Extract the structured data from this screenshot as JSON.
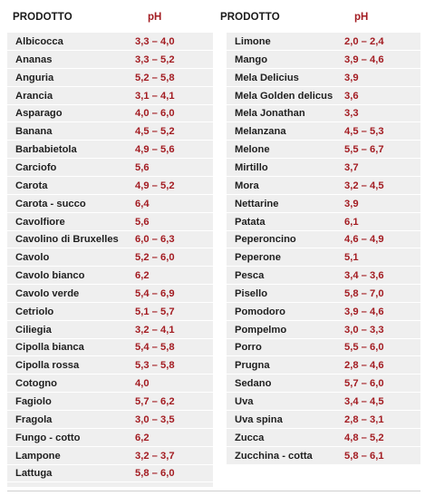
{
  "header": {
    "left_product_label": "PRODOTTO",
    "left_ph_label": "pH",
    "right_product_label": "PRODOTTO",
    "right_ph_label": "pH"
  },
  "left_table": [
    {
      "name": "Albicocca",
      "ph": "3,3 – 4,0"
    },
    {
      "name": "Ananas",
      "ph": "3,3 – 5,2"
    },
    {
      "name": "Anguria",
      "ph": "5,2 – 5,8"
    },
    {
      "name": "Arancia",
      "ph": "3,1 – 4,1"
    },
    {
      "name": "Asparago",
      "ph": "4,0 – 6,0"
    },
    {
      "name": "Banana",
      "ph": "4,5 – 5,2"
    },
    {
      "name": "Barbabietola",
      "ph": "4,9 – 5,6"
    },
    {
      "name": "Carciofo",
      "ph": "5,6"
    },
    {
      "name": "Carota",
      "ph": "4,9 – 5,2"
    },
    {
      "name": "Carota - succo",
      "ph": "6,4"
    },
    {
      "name": "Cavolfiore",
      "ph": "5,6"
    },
    {
      "name": "Cavolino di Bruxelles",
      "ph": "6,0 – 6,3"
    },
    {
      "name": "Cavolo",
      "ph": "5,2 – 6,0"
    },
    {
      "name": "Cavolo bianco",
      "ph": "6,2"
    },
    {
      "name": "Cavolo verde",
      "ph": "5,4 – 6,9"
    },
    {
      "name": "Cetriolo",
      "ph": "5,1 – 5,7"
    },
    {
      "name": "Ciliegia",
      "ph": "3,2 – 4,1"
    },
    {
      "name": "Cipolla bianca",
      "ph": "5,4 – 5,8"
    },
    {
      "name": "Cipolla rossa",
      "ph": "5,3 – 5,8"
    },
    {
      "name": "Cotogno",
      "ph": "4,0"
    },
    {
      "name": "Fagiolo",
      "ph": "5,7 – 6,2"
    },
    {
      "name": "Fragola",
      "ph": "3,0 – 3,5"
    },
    {
      "name": "Fungo - cotto",
      "ph": "6,2"
    },
    {
      "name": "Lampone",
      "ph": "3,2 – 3,7"
    },
    {
      "name": "Lattuga",
      "ph": "5,8 – 6,0"
    }
  ],
  "right_table": [
    {
      "name": "Limone",
      "ph": "2,0 – 2,4"
    },
    {
      "name": "Mango",
      "ph": "3,9 – 4,6"
    },
    {
      "name": "Mela Delicius",
      "ph": "3,9"
    },
    {
      "name": "Mela Golden delicus",
      "ph": "3,6"
    },
    {
      "name": "Mela Jonathan",
      "ph": "3,3"
    },
    {
      "name": "Melanzana",
      "ph": "4,5 – 5,3"
    },
    {
      "name": "Melone",
      "ph": "5,5 – 6,7"
    },
    {
      "name": "Mirtillo",
      "ph": "3,7"
    },
    {
      "name": "Mora",
      "ph": "3,2 – 4,5"
    },
    {
      "name": "Nettarine",
      "ph": "3,9"
    },
    {
      "name": "Patata",
      "ph": "6,1"
    },
    {
      "name": "Peperoncino",
      "ph": "4,6 – 4,9"
    },
    {
      "name": "Peperone",
      "ph": "5,1"
    },
    {
      "name": "Pesca",
      "ph": "3,4 – 3,6"
    },
    {
      "name": "Pisello",
      "ph": "5,8 – 7,0"
    },
    {
      "name": "Pomodoro",
      "ph": "3,9 – 4,6"
    },
    {
      "name": "Pompelmo",
      "ph": "3,0 – 3,3"
    },
    {
      "name": "Porro",
      "ph": "5,5 – 6,0"
    },
    {
      "name": "Prugna",
      "ph": "2,8 – 4,6"
    },
    {
      "name": "Sedano",
      "ph": "5,7 – 6,0"
    },
    {
      "name": "Uva",
      "ph": "3,4 – 4,5"
    },
    {
      "name": "Uva spina",
      "ph": "2,8 – 3,1"
    },
    {
      "name": "Zucca",
      "ph": "4,8 – 5,2"
    },
    {
      "name": "Zucchina - cotta",
      "ph": "5,8 – 6,1"
    }
  ]
}
